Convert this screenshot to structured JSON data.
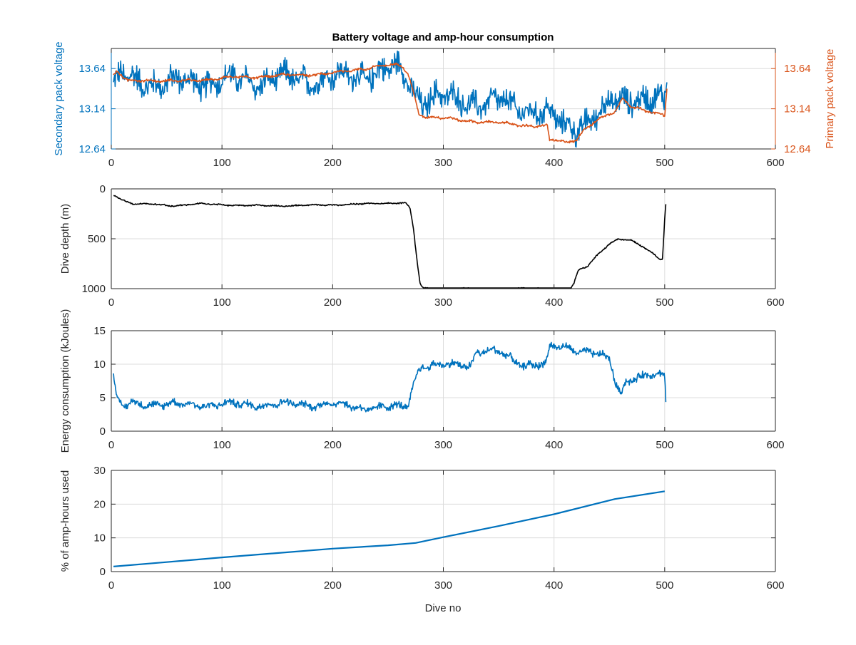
{
  "figure": {
    "title": "Battery voltage and amp-hour consumption",
    "xlabel": "Dive no"
  },
  "colors": {
    "blue": "#0072BD",
    "orange": "#D95319",
    "black": "#000000",
    "grid": "#dcdcdc",
    "axis": "#262626"
  },
  "chart_data": [
    {
      "type": "line",
      "x_ticks": [
        0,
        100,
        200,
        300,
        400,
        500,
        600
      ],
      "xlim": [
        0,
        600
      ],
      "ylim": [
        12.64,
        13.89
      ],
      "y_ticks": [
        12.64,
        13.14,
        13.64
      ],
      "y_tick_labels": [
        "12.64",
        "13.14",
        "13.64"
      ],
      "ylabel": "Secondary pack voltage",
      "ylabel_right": "Primary pack voltage",
      "ylim_right": [
        12.64,
        13.89
      ],
      "y_ticks_right": [
        12.64,
        13.14,
        13.64
      ],
      "y_tick_labels_right": [
        "12.64",
        "13.14",
        "13.64"
      ],
      "grid": true,
      "series": [
        {
          "axis": "left",
          "color": "#0072BD",
          "noisy": true,
          "noise_amp": 0.16,
          "noise_amp2": 0.06,
          "x": [
            2,
            8,
            15,
            30,
            60,
            100,
            150,
            200,
            240,
            262,
            268,
            272,
            280,
            290,
            320,
            350,
            380,
            395,
            405,
            420,
            440,
            455,
            470,
            490,
            500,
            502
          ],
          "y": [
            13.4,
            13.55,
            13.5,
            13.48,
            13.46,
            13.48,
            13.5,
            13.52,
            13.6,
            13.62,
            13.5,
            13.4,
            13.25,
            13.28,
            13.25,
            13.2,
            13.15,
            13.05,
            12.95,
            12.93,
            13.05,
            13.22,
            13.3,
            13.25,
            13.2,
            13.45
          ]
        },
        {
          "axis": "right",
          "color": "#D95319",
          "noisy": true,
          "noise_amp": 0.015,
          "noise_amp2": 0.01,
          "x": [
            2,
            5,
            15,
            30,
            60,
            100,
            150,
            200,
            240,
            262,
            268,
            272,
            278,
            285,
            300,
            350,
            380,
            394,
            396,
            398,
            410,
            420,
            428,
            440,
            455,
            462,
            470,
            490,
            500,
            502
          ],
          "y": [
            13.55,
            13.6,
            13.48,
            13.5,
            13.48,
            13.52,
            13.55,
            13.58,
            13.67,
            13.68,
            13.58,
            13.4,
            13.08,
            13.04,
            13.02,
            12.96,
            12.93,
            12.92,
            12.74,
            12.75,
            12.72,
            12.76,
            12.9,
            13.0,
            13.1,
            13.27,
            13.18,
            13.08,
            13.05,
            13.38
          ]
        }
      ]
    },
    {
      "type": "line",
      "xlim": [
        0,
        600
      ],
      "x_ticks": [
        0,
        100,
        200,
        300,
        400,
        500,
        600
      ],
      "ylim": [
        0,
        1000
      ],
      "y_ticks": [
        0,
        500,
        1000
      ],
      "y_tick_labels": [
        "0",
        "500",
        "1000"
      ],
      "y_reversed": true,
      "ylabel": "Dive depth (m)",
      "grid": true,
      "series": [
        {
          "axis": "left",
          "color": "#000000",
          "noisy": true,
          "noise_amp": 6,
          "noise_amp2": 3,
          "x": [
            2,
            5,
            10,
            20,
            40,
            55,
            60,
            80,
            100,
            120,
            150,
            180,
            200,
            230,
            260,
            266,
            270,
            273,
            276,
            279,
            282,
            300,
            350,
            400,
            415,
            418,
            422,
            425,
            430,
            440,
            450,
            458,
            470,
            480,
            490,
            495,
            498,
            500,
            501
          ],
          "y": [
            60,
            80,
            110,
            150,
            155,
            170,
            165,
            150,
            160,
            165,
            170,
            165,
            160,
            150,
            140,
            140,
            200,
            400,
            700,
            950,
            1000,
            1000,
            1000,
            1000,
            1000,
            950,
            820,
            800,
            780,
            650,
            550,
            500,
            520,
            580,
            650,
            700,
            700,
            300,
            150
          ]
        }
      ]
    },
    {
      "type": "line",
      "xlim": [
        0,
        600
      ],
      "x_ticks": [
        0,
        100,
        200,
        300,
        400,
        500,
        600
      ],
      "ylim": [
        0,
        15
      ],
      "y_ticks": [
        0,
        5,
        10,
        15
      ],
      "y_tick_labels": [
        "0",
        "5",
        "10",
        "15"
      ],
      "ylabel": "Energy consumption (kJoules)",
      "grid": true,
      "series": [
        {
          "axis": "left",
          "color": "#0072BD",
          "noisy": true,
          "noise_amp": 0.55,
          "noise_amp2": 0.25,
          "x": [
            2,
            4,
            7,
            12,
            20,
            50,
            100,
            150,
            200,
            230,
            260,
            268,
            272,
            278,
            282,
            300,
            325,
            330,
            350,
            370,
            390,
            394,
            396,
            410,
            420,
            428,
            440,
            450,
            456,
            460,
            465,
            475,
            490,
            500,
            501
          ],
          "y": [
            8.0,
            6.0,
            4.0,
            3.6,
            4.2,
            4.0,
            4.0,
            4.0,
            4.0,
            3.5,
            3.6,
            3.7,
            6.5,
            9.5,
            9.8,
            9.8,
            10.0,
            12.0,
            11.8,
            10.0,
            10.0,
            10.5,
            12.5,
            12.5,
            12.2,
            12.0,
            11.5,
            10.5,
            7.0,
            5.5,
            7.5,
            8.2,
            8.5,
            8.0,
            4.5
          ]
        }
      ]
    },
    {
      "type": "line",
      "xlim": [
        0,
        600
      ],
      "x_ticks": [
        0,
        100,
        200,
        300,
        400,
        500,
        600
      ],
      "ylim": [
        0,
        30
      ],
      "y_ticks": [
        0,
        10,
        20,
        30
      ],
      "y_tick_labels": [
        "0",
        "10",
        "20",
        "30"
      ],
      "ylabel": "% of amp-hours used",
      "xlabel": "Dive no",
      "grid": true,
      "series": [
        {
          "axis": "left",
          "color": "#0072BD",
          "noisy": false,
          "x": [
            2,
            50,
            100,
            150,
            200,
            250,
            275,
            300,
            350,
            400,
            455,
            500
          ],
          "y": [
            1.5,
            2.8,
            4.2,
            5.5,
            6.8,
            7.8,
            8.5,
            10.2,
            13.5,
            17.0,
            21.5,
            23.8
          ]
        }
      ]
    }
  ]
}
